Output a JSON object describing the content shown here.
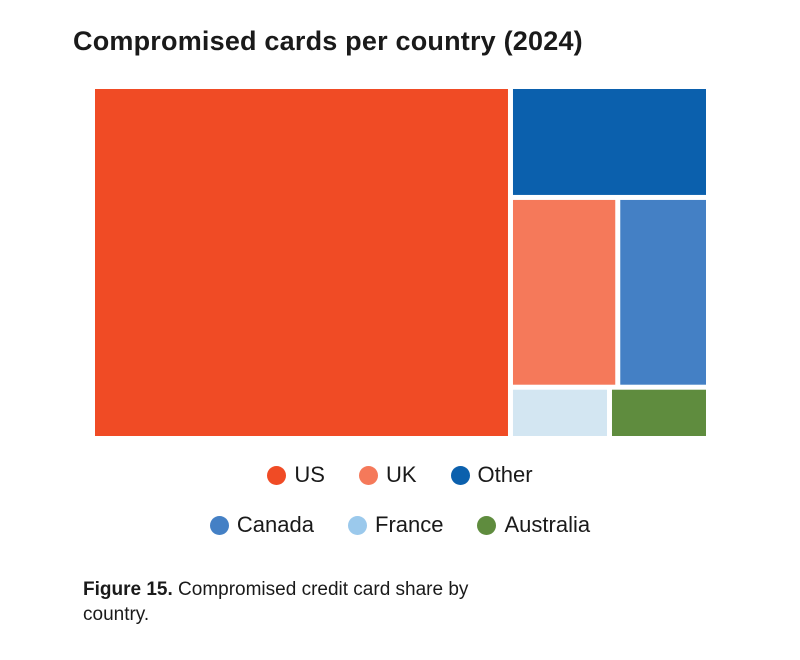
{
  "chart_data": {
    "type": "treemap",
    "title": "Compromised cards per country (2024)",
    "items": [
      {
        "name": "US",
        "value": 68,
        "color": "#f04b25",
        "legend_color": "#f04b25"
      },
      {
        "name": "UK",
        "value": 9.5,
        "color": "#f5795a",
        "legend_color": "#f5795a"
      },
      {
        "name": "Other",
        "value": 10,
        "color": "#0b60ad",
        "legend_color": "#0b60ad"
      },
      {
        "name": "Canada",
        "value": 8,
        "color": "#4480c5",
        "legend_color": "#4480c5"
      },
      {
        "name": "France",
        "value": 2.25,
        "color": "#d3e6f2",
        "legend_color": "#9bc9ec"
      },
      {
        "name": "Australia",
        "value": 2.25,
        "color": "#5f8c3e",
        "legend_color": "#5f8c3e"
      }
    ],
    "legend": {
      "placement": "bottom",
      "rows": [
        [
          "US",
          "UK",
          "Other"
        ],
        [
          "Canada",
          "France",
          "Australia"
        ]
      ]
    }
  },
  "caption": {
    "label": "Figure 15.",
    "text": " Compromised credit card share by country."
  }
}
